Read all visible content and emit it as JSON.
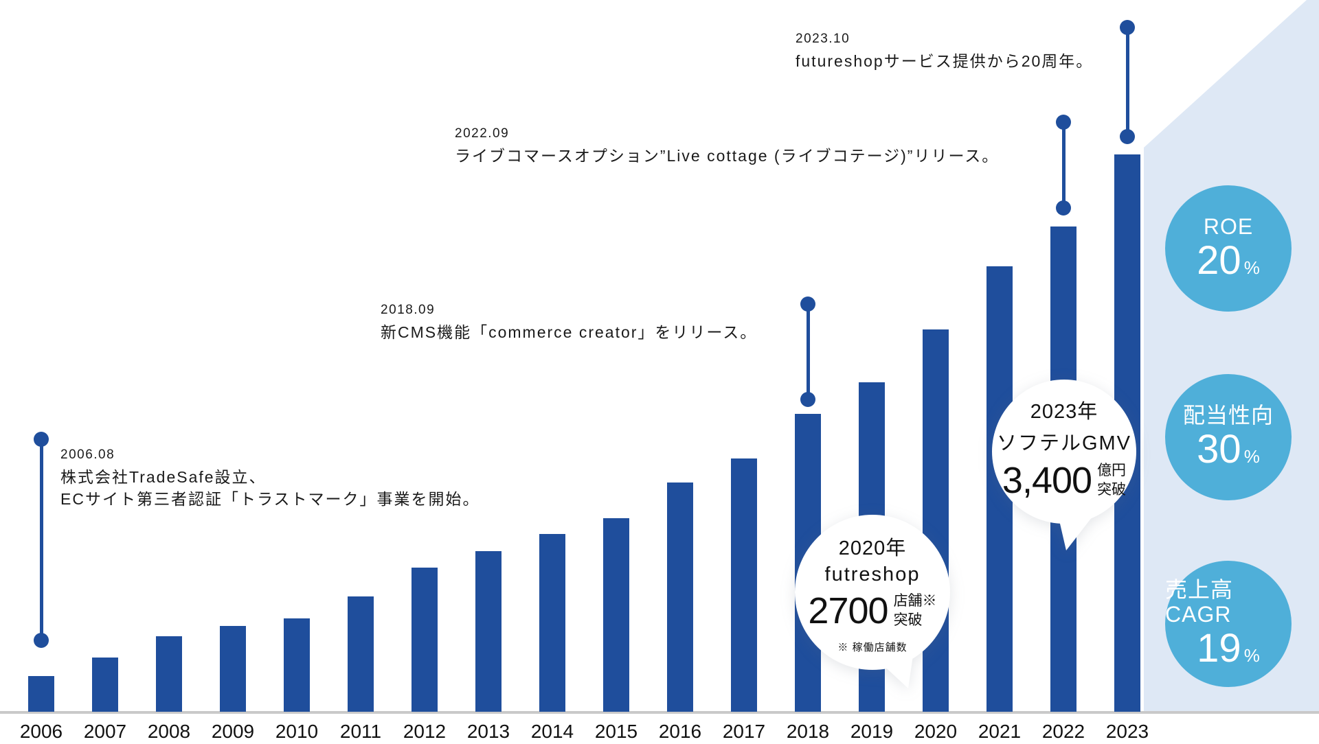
{
  "chart_data": {
    "type": "bar",
    "title": "",
    "xlabel": "",
    "ylabel": "",
    "categories": [
      "2006",
      "2007",
      "2008",
      "2009",
      "2010",
      "2011",
      "2012",
      "2013",
      "2014",
      "2015",
      "2016",
      "2017",
      "2018",
      "2019",
      "2020",
      "2021",
      "2022",
      "2023"
    ],
    "values": [
      52,
      79,
      110,
      125,
      136,
      168,
      210,
      234,
      259,
      282,
      334,
      369,
      434,
      480,
      557,
      649,
      707,
      812
    ],
    "values_note": "relative bar heights in pixels; the chart shows qualitative growth with no numeric y-axis",
    "grid": false,
    "legend": false,
    "bar_color": "#1f4e9c"
  },
  "milestones": [
    {
      "date": "2006.08",
      "lines": [
        "株式会社TradeSafe設立、",
        "ECサイト第三者認証「トラストマーク」事業を開始。"
      ]
    },
    {
      "date": "2018.09",
      "lines": [
        "新CMS機能「commerce creator」をリリース。"
      ]
    },
    {
      "date": "2022.09",
      "lines": [
        "ライブコマースオプション”Live cottage (ライブコテージ)”リリース。"
      ]
    },
    {
      "date": "2023.10",
      "lines": [
        "futureshopサービス提供から20周年。"
      ]
    }
  ],
  "bubbles": [
    {
      "line1": "2020年",
      "line2": "futreshop",
      "number": "2700",
      "unit_lines": [
        "店舗※",
        "突破"
      ],
      "note": "※ 稼働店舗数"
    },
    {
      "line1": "2023年",
      "line2": "ソフテルGMV",
      "number": "3,400",
      "unit_lines": [
        "億円",
        "突破"
      ]
    }
  ],
  "kpis": [
    {
      "label": "ROE",
      "value": "20",
      "unit": "%"
    },
    {
      "label": "配当性向",
      "value": "30",
      "unit": "%"
    },
    {
      "label": "売上高CAGR",
      "value": "19",
      "unit": "%"
    }
  ],
  "colors": {
    "bar": "#1f4e9c",
    "kpi_circle": "#4fafd9",
    "wedge": "#dee8f5",
    "baseline": "#c9c9c9",
    "text": "#1a1a1a"
  }
}
